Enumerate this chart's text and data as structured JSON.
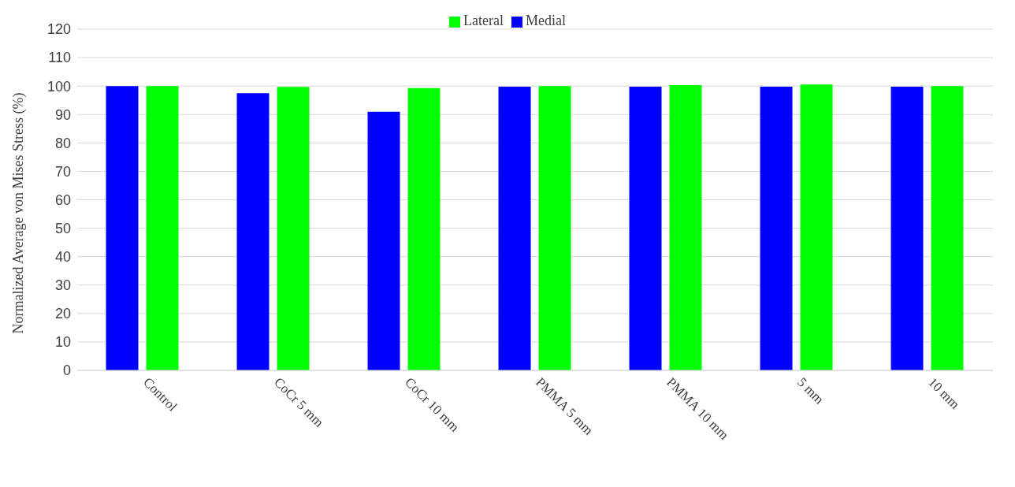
{
  "chart_data": {
    "type": "bar",
    "ylabel": "Normalized Average von Mises Stress (%)",
    "categories": [
      "Control",
      "CoCr 5 mm",
      "CoCr 10 mm",
      "PMMA 5 mm",
      "PMMA 10 mm",
      "5 mm",
      "10 mm"
    ],
    "series": [
      {
        "name": "Medial",
        "color": "#0000ff",
        "values": [
          100,
          97.5,
          91,
          99.8,
          99.8,
          99.8,
          99.8
        ]
      },
      {
        "name": "Lateral",
        "color": "#00ff00",
        "values": [
          100,
          99.7,
          99.3,
          100,
          100.3,
          100.5,
          100
        ]
      }
    ],
    "ylim": [
      0,
      120
    ],
    "yticks": [
      0,
      10,
      20,
      30,
      40,
      50,
      60,
      70,
      80,
      90,
      100,
      110,
      120
    ],
    "grid": "y",
    "legend": "top"
  }
}
